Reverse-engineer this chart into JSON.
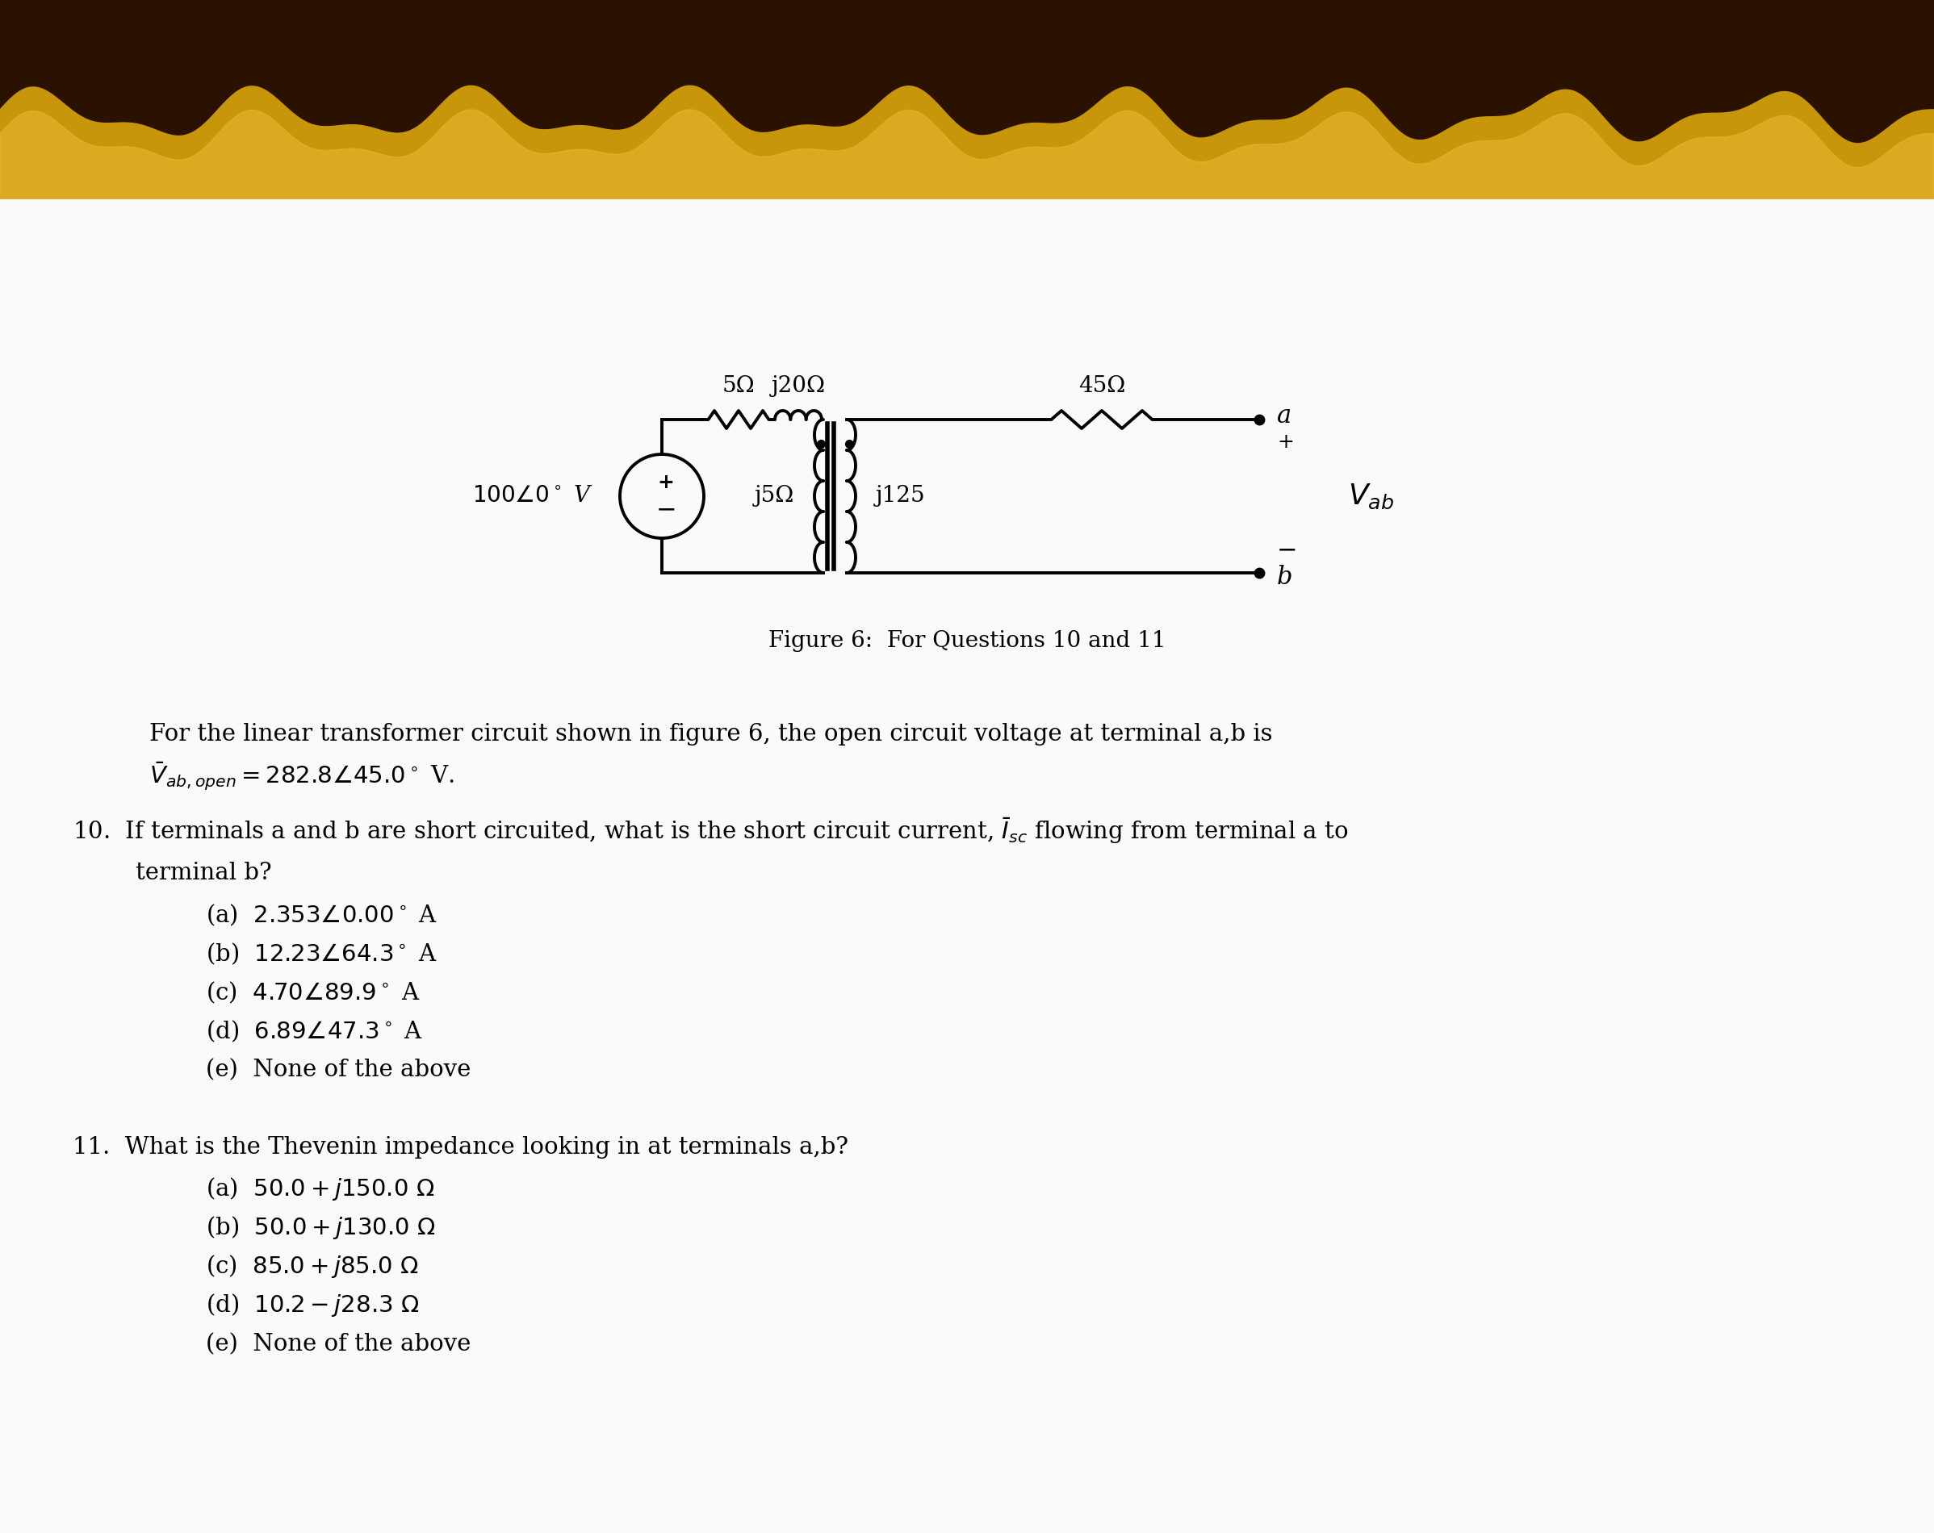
{
  "bg_color": "#FAFAF8",
  "header_dark": "#2B1200",
  "header_mid": "#7B4A00",
  "header_gold": "#C8960A",
  "header_light_gold": "#E8B830",
  "figure_caption": "Figure 6:  For Questions 10 and 11",
  "intro_line1": "For the linear transformer circuit shown in figure 6, the open circuit voltage at terminal a,b is",
  "intro_line2": "$\\bar{V}_{ab,open} = 282.8\\angle45.0^\\circ$ V.",
  "q10_line1": "10.  If terminals a and b are short circuited, what is the short circuit current, $\\bar{I}_{sc}$ flowing from terminal a to",
  "q10_line2": "terminal b?",
  "q10_options": [
    "(a)  $2.353\\angle0.00^\\circ$ A",
    "(b)  $12.23\\angle64.3^\\circ$ A",
    "(c)  $4.70\\angle89.9^\\circ$ A",
    "(d)  $6.89\\angle47.3^\\circ$ A",
    "(e)  None of the above"
  ],
  "q11_line": "11.  What is the Thevenin impedance looking in at terminals a,b?",
  "q11_options": [
    "(a)  $50.0 + j150.0\\ \\Omega$",
    "(b)  $50.0 + j130.0\\ \\Omega$",
    "(c)  $85.0 + j85.0\\ \\Omega$",
    "(d)  $10.2 - j28.3\\ \\Omega$",
    "(e)  None of the above"
  ],
  "vs_label": "$100\\angle0^\\circ$ V",
  "r1_label": "5Ω",
  "jx1_label": "j20Ω",
  "r2_label": "45Ω",
  "jl1_label": "j5Ω",
  "jl2_label": "j125",
  "term_a": "a",
  "term_b": "b",
  "vab_label": "$V_{ab}$"
}
